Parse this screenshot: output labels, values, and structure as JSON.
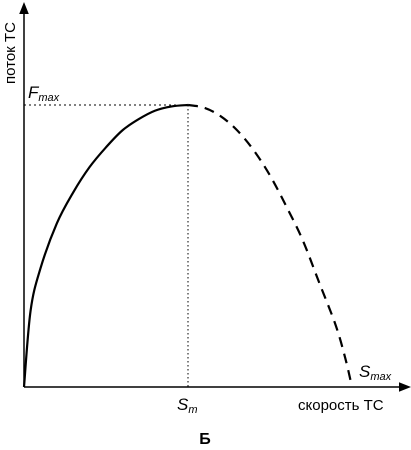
{
  "chart_data": {
    "type": "line",
    "title": "",
    "xlabel": "скорость ТС",
    "ylabel": "поток ТС",
    "grid": false,
    "legend": "none",
    "series": [
      {
        "style": "solid",
        "x": [
          0,
          0.02,
          0.05,
          0.1,
          0.15,
          0.2,
          0.25,
          0.3,
          0.35,
          0.4,
          0.45,
          0.5
        ],
        "y": [
          0,
          0.27,
          0.42,
          0.58,
          0.69,
          0.78,
          0.85,
          0.91,
          0.95,
          0.98,
          0.995,
          1.0
        ]
      },
      {
        "style": "dashed",
        "x": [
          0.5,
          0.55,
          0.6,
          0.65,
          0.7,
          0.75,
          0.8,
          0.85,
          0.9,
          0.95,
          0.98,
          1.0
        ],
        "y": [
          1.0,
          0.99,
          0.96,
          0.91,
          0.84,
          0.75,
          0.64,
          0.52,
          0.37,
          0.22,
          0.1,
          0
        ]
      }
    ],
    "annotations": {
      "fmax_main": "F",
      "fmax_sub": "max",
      "sm_main": "S",
      "sm_sub": "m",
      "smax_main": "S",
      "smax_sub": "max"
    },
    "caption": "Б"
  }
}
